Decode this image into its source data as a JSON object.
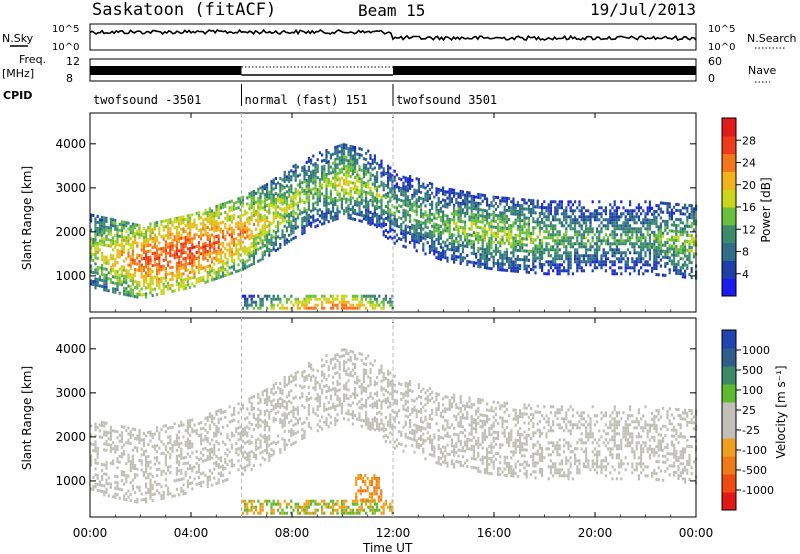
{
  "header": {
    "station": "Saskatoon (fitACF)",
    "beam": "Beam 15",
    "date": "19/Jul/2013"
  },
  "top_panels": {
    "nsky_label": "N.Sky",
    "nsearch_label": "N.Search",
    "noise_ticks": [
      "10^5",
      "10^0"
    ],
    "freq_label_line1": "Freq.",
    "freq_label_line2": "[MHz]",
    "freq_ticks": [
      "12",
      "8"
    ],
    "nave_label": "Nave",
    "nave_ticks": [
      "60",
      "0"
    ],
    "cpid_label": "CPID",
    "cpid_segments": [
      {
        "start_hour": 0,
        "end_hour": 6,
        "label": "twofsound -3501"
      },
      {
        "start_hour": 6,
        "end_hour": 12,
        "label": "normal (fast) 151"
      },
      {
        "start_hour": 12,
        "end_hour": 24,
        "label": "twofsound 3501"
      }
    ]
  },
  "axes": {
    "xlabel": "Time UT",
    "xticks": [
      "00:00",
      "04:00",
      "08:00",
      "12:00",
      "16:00",
      "20:00",
      "00:00"
    ],
    "ylabel": "Slant Range [km]",
    "yticks": [
      "1000",
      "2000",
      "3000",
      "4000"
    ]
  },
  "colorbars": {
    "power_label": "Power [dB]",
    "power_ticks": [
      "4",
      "8",
      "12",
      "16",
      "20",
      "24",
      "28"
    ],
    "velocity_label": "Velocity [m s⁻¹]",
    "velocity_ticks": [
      "1000",
      "500",
      "100",
      "25",
      "-25",
      "-100",
      "-500",
      "-1000"
    ],
    "power_colors": [
      "#1c1cf0",
      "#1f3fa8",
      "#2e6e87",
      "#3c8c6c",
      "#6abf3c",
      "#c9d61c",
      "#f2b21c",
      "#f2761c",
      "#ee3b1c",
      "#e11b1b"
    ],
    "velocity_colors": [
      "#2244b0",
      "#2e5f8a",
      "#3a8a68",
      "#5cbb2e",
      "#c0c0b8",
      "#c0c0b8",
      "#f0a020",
      "#f07a18",
      "#f04a14",
      "#e01818"
    ]
  },
  "chart_data": [
    {
      "type": "heatmap",
      "title": "Power [dB]",
      "x_range_hours": [
        0,
        24
      ],
      "ylim": [
        180,
        4700
      ],
      "clim": [
        0,
        30
      ],
      "features": [
        {
          "name": "main_band_rise",
          "x_hours": [
            0,
            2,
            4,
            6,
            7,
            8,
            9,
            10,
            11,
            12
          ],
          "range_km": [
            1600,
            1350,
            1600,
            2000,
            2300,
            2700,
            3000,
            3200,
            3050,
            2600
          ],
          "power_db": [
            16,
            24,
            26,
            22,
            18,
            16,
            14,
            18,
            14,
            12
          ]
        },
        {
          "name": "main_band_fall",
          "x_hours": [
            12,
            14,
            16,
            18,
            20,
            22,
            24
          ],
          "range_km": [
            2600,
            2200,
            2000,
            1900,
            1900,
            1900,
            1800
          ],
          "power_db": [
            12,
            14,
            16,
            14,
            12,
            12,
            16
          ]
        },
        {
          "name": "near_range_echoes",
          "x_hours": [
            6,
            8,
            10,
            12
          ],
          "range_km": [
            300,
            300,
            300,
            300
          ],
          "power_db": [
            10,
            20,
            24,
            14
          ]
        }
      ]
    },
    {
      "type": "heatmap",
      "title": "Velocity [m s⁻¹]",
      "x_range_hours": [
        0,
        24
      ],
      "ylim": [
        180,
        4700
      ],
      "clim": [
        -1000,
        1000
      ],
      "features": [
        {
          "name": "ground_scatter_band",
          "velocity_ms": [
            -25,
            25
          ]
        },
        {
          "name": "negative_velocity_patch",
          "x_hours": [
            10.5,
            11.5
          ],
          "range_km": [
            600,
            1200
          ],
          "velocity_ms": [
            -500,
            -100
          ]
        },
        {
          "name": "near_range_mixed",
          "x_hours": [
            5,
            12
          ],
          "range_km": [
            250,
            700
          ],
          "velocity_ms": [
            -500,
            100
          ]
        }
      ]
    }
  ]
}
